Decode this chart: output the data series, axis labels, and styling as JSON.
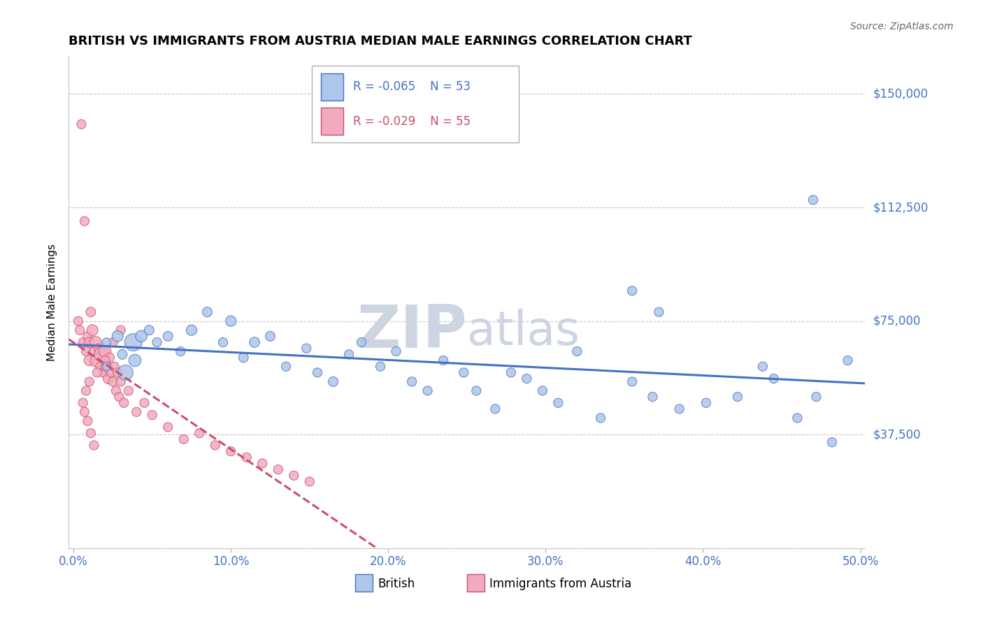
{
  "title": "BRITISH VS IMMIGRANTS FROM AUSTRIA MEDIAN MALE EARNINGS CORRELATION CHART",
  "source": "Source: ZipAtlas.com",
  "ylabel": "Median Male Earnings",
  "xlim": [
    -0.003,
    0.503
  ],
  "ylim": [
    0,
    162500
  ],
  "yticks": [
    0,
    37500,
    75000,
    112500,
    150000
  ],
  "ytick_labels": [
    "",
    "$37,500",
    "$75,000",
    "$112,500",
    "$150,000"
  ],
  "xticks": [
    0.0,
    0.1,
    0.2,
    0.3,
    0.4,
    0.5
  ],
  "xtick_labels": [
    "0.0%",
    "10.0%",
    "20.0%",
    "30.0%",
    "40.0%",
    "50.0%"
  ],
  "legend_r_blue": "R = -0.065",
  "legend_n_blue": "N = 53",
  "legend_r_pink": "R = -0.029",
  "legend_n_pink": "N = 55",
  "color_blue": "#aec6e8",
  "color_pink": "#f2abbe",
  "color_blue_line": "#4472c4",
  "color_pink_line": "#c9506a",
  "color_label": "#4472c4",
  "watermark_color": "#cdd5e3",
  "british_x": [
    0.021,
    0.021,
    0.028,
    0.031,
    0.033,
    0.038,
    0.039,
    0.043,
    0.048,
    0.053,
    0.06,
    0.068,
    0.075,
    0.085,
    0.095,
    0.1,
    0.108,
    0.115,
    0.125,
    0.135,
    0.148,
    0.155,
    0.165,
    0.175,
    0.183,
    0.195,
    0.205,
    0.215,
    0.225,
    0.235,
    0.248,
    0.256,
    0.268,
    0.278,
    0.288,
    0.298,
    0.308,
    0.32,
    0.335,
    0.355,
    0.368,
    0.385,
    0.402,
    0.422,
    0.438,
    0.445,
    0.46,
    0.472,
    0.482,
    0.492,
    0.355,
    0.372,
    0.47
  ],
  "british_y": [
    68000,
    60000,
    70000,
    64000,
    58000,
    68000,
    62000,
    70000,
    72000,
    68000,
    70000,
    65000,
    72000,
    78000,
    68000,
    75000,
    63000,
    68000,
    70000,
    60000,
    66000,
    58000,
    55000,
    64000,
    68000,
    60000,
    65000,
    55000,
    52000,
    62000,
    58000,
    52000,
    46000,
    58000,
    56000,
    52000,
    48000,
    65000,
    43000,
    55000,
    50000,
    46000,
    48000,
    50000,
    60000,
    56000,
    43000,
    50000,
    35000,
    62000,
    85000,
    78000,
    115000
  ],
  "british_sizes": [
    80,
    70,
    130,
    100,
    240,
    320,
    160,
    140,
    100,
    90,
    100,
    90,
    120,
    100,
    90,
    120,
    100,
    110,
    100,
    90,
    90,
    90,
    100,
    90,
    90,
    90,
    90,
    90,
    90,
    90,
    90,
    90,
    90,
    90,
    90,
    90,
    90,
    90,
    90,
    90,
    90,
    90,
    90,
    90,
    90,
    90,
    90,
    90,
    90,
    90,
    90,
    90,
    90
  ],
  "austria_x": [
    0.003,
    0.004,
    0.005,
    0.006,
    0.007,
    0.008,
    0.009,
    0.01,
    0.01,
    0.011,
    0.012,
    0.013,
    0.014,
    0.015,
    0.016,
    0.017,
    0.018,
    0.019,
    0.02,
    0.021,
    0.022,
    0.023,
    0.024,
    0.025,
    0.026,
    0.027,
    0.028,
    0.029,
    0.03,
    0.032,
    0.035,
    0.04,
    0.045,
    0.05,
    0.06,
    0.07,
    0.08,
    0.09,
    0.1,
    0.11,
    0.12,
    0.13,
    0.14,
    0.15,
    0.03,
    0.025,
    0.02,
    0.015,
    0.01,
    0.008,
    0.006,
    0.007,
    0.009,
    0.011,
    0.013
  ],
  "austria_y": [
    75000,
    72000,
    140000,
    68000,
    108000,
    65000,
    70000,
    68000,
    62000,
    78000,
    72000,
    65000,
    68000,
    62000,
    66000,
    60000,
    64000,
    58000,
    65000,
    60000,
    56000,
    63000,
    58000,
    55000,
    60000,
    52000,
    58000,
    50000,
    55000,
    48000,
    52000,
    45000,
    48000,
    44000,
    40000,
    36000,
    38000,
    34000,
    32000,
    30000,
    28000,
    26000,
    24000,
    22000,
    72000,
    68000,
    62000,
    58000,
    55000,
    52000,
    48000,
    45000,
    42000,
    38000,
    34000
  ],
  "austria_sizes": [
    90,
    90,
    90,
    90,
    90,
    90,
    90,
    110,
    120,
    100,
    130,
    90,
    150,
    200,
    90,
    90,
    240,
    90,
    160,
    130,
    110,
    90,
    90,
    90,
    90,
    90,
    90,
    90,
    90,
    90,
    90,
    90,
    90,
    90,
    90,
    90,
    90,
    90,
    90,
    90,
    90,
    90,
    90,
    90,
    90,
    90,
    90,
    90,
    90,
    90,
    90,
    90,
    90,
    90,
    90
  ]
}
